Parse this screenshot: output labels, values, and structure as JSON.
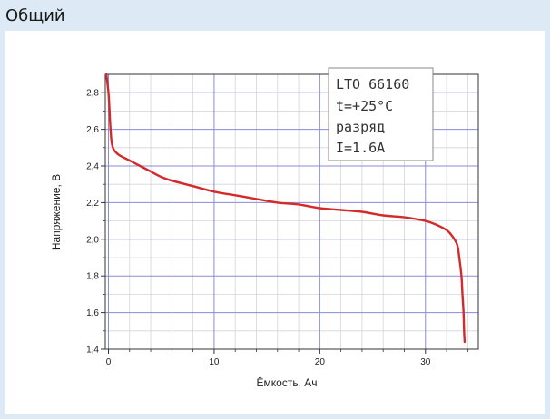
{
  "panel": {
    "title": "Общий"
  },
  "chart_data": {
    "type": "line",
    "xlabel": "Ёмкость, Ач",
    "ylabel": "Напряжение, В",
    "xlim": [
      -0.3,
      35
    ],
    "ylim": [
      1.4,
      2.9
    ],
    "x_ticks": [
      0,
      10,
      20,
      30
    ],
    "x_tick_labels": [
      "0",
      "10",
      "20",
      "30"
    ],
    "y_ticks": [
      1.4,
      1.6,
      1.8,
      2.0,
      2.2,
      2.4,
      2.6,
      2.8
    ],
    "y_tick_labels": [
      "1,4",
      "1,6",
      "1,8",
      "2,0",
      "2,2",
      "2,4",
      "2,6",
      "2,8"
    ],
    "grid": true,
    "annotation": [
      "LTO 66160",
      "t=+25°C",
      "разряд",
      "I=1.6A"
    ],
    "series": [
      {
        "color": "#d42a2a",
        "points": [
          [
            -0.2,
            2.9
          ],
          [
            0.0,
            2.8
          ],
          [
            0.1,
            2.7
          ],
          [
            0.2,
            2.6
          ],
          [
            0.3,
            2.53
          ],
          [
            0.5,
            2.49
          ],
          [
            1.0,
            2.46
          ],
          [
            2.0,
            2.43
          ],
          [
            3.0,
            2.4
          ],
          [
            4.0,
            2.37
          ],
          [
            5.0,
            2.34
          ],
          [
            6.0,
            2.32
          ],
          [
            8.0,
            2.29
          ],
          [
            10.0,
            2.26
          ],
          [
            12.0,
            2.24
          ],
          [
            14.0,
            2.22
          ],
          [
            16.0,
            2.2
          ],
          [
            18.0,
            2.19
          ],
          [
            20.0,
            2.17
          ],
          [
            22.0,
            2.16
          ],
          [
            24.0,
            2.15
          ],
          [
            26.0,
            2.13
          ],
          [
            28.0,
            2.12
          ],
          [
            30.0,
            2.1
          ],
          [
            31.0,
            2.08
          ],
          [
            32.0,
            2.05
          ],
          [
            32.5,
            2.02
          ],
          [
            33.0,
            1.97
          ],
          [
            33.2,
            1.9
          ],
          [
            33.4,
            1.8
          ],
          [
            33.5,
            1.7
          ],
          [
            33.6,
            1.6
          ],
          [
            33.65,
            1.5
          ],
          [
            33.7,
            1.44
          ]
        ]
      }
    ]
  }
}
